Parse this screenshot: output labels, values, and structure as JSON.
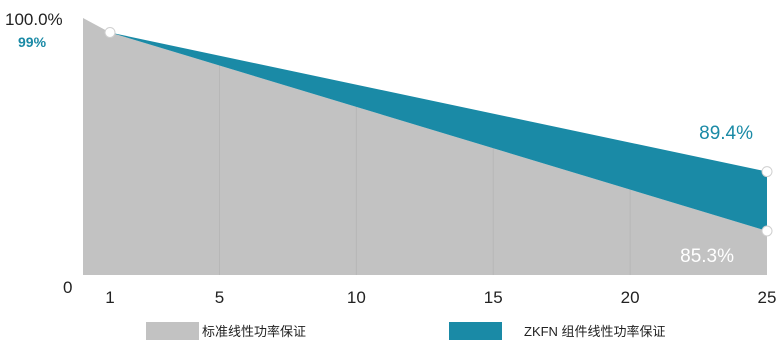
{
  "chart_data": {
    "type": "area",
    "x": [
      1,
      25
    ],
    "xticks": [
      1,
      5,
      10,
      15,
      20,
      25
    ],
    "ylim": [
      0,
      100
    ],
    "yticks": [
      {
        "value": 100,
        "label": "100.0%"
      },
      {
        "value": 0,
        "label": "0"
      }
    ],
    "grid": true,
    "legend_position": "bottom",
    "series": [
      {
        "name": "标准线性功率保证",
        "color": "#c2c2c2",
        "points": [
          {
            "x": 0,
            "y": 100
          },
          {
            "x": 1,
            "y": 99
          },
          {
            "x": 25,
            "y": 85.3
          }
        ]
      },
      {
        "name": "ZKFN 组件线性功率保证",
        "color": "#1a8aa6",
        "points": [
          {
            "x": 1,
            "y": 99
          },
          {
            "x": 25,
            "y": 89.4
          }
        ]
      }
    ],
    "annotations": [
      {
        "text": "99%",
        "color": "#1a8aa6",
        "bold": true,
        "anchor": "start-y-axis"
      },
      {
        "text": "89.4%",
        "color": "#1a8aa6",
        "bold": false,
        "anchor": "end-top"
      },
      {
        "text": "85.3%",
        "color": "#ffffff",
        "bold": false,
        "anchor": "end-bottom"
      }
    ],
    "marker_color": "#ffffff"
  }
}
